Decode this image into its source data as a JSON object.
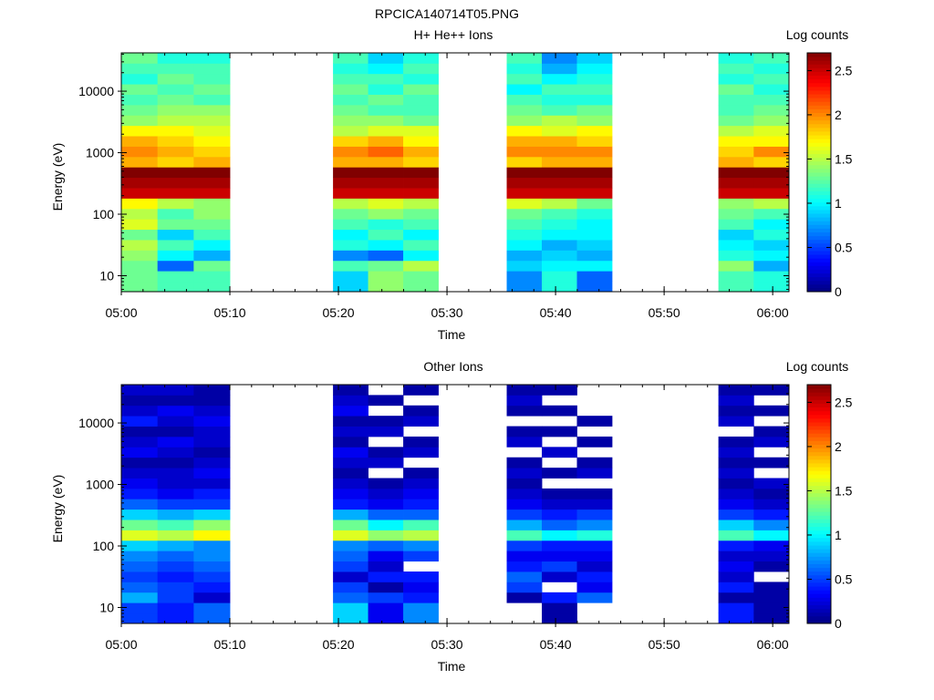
{
  "figure_title": "RPCICA140714T05.PNG",
  "colors": {
    "background": "#ffffff",
    "axis": "#000000",
    "colormap": "jet"
  },
  "chart_data": [
    {
      "type": "heatmap",
      "title": "H+ He++ Ions",
      "xlabel": "Time",
      "ylabel": "Energy (eV)",
      "y_scale": "log",
      "ylim": [
        5.5,
        42000
      ],
      "xlim_minutes": [
        0,
        61.5
      ],
      "x_ticks": [
        {
          "t": 0,
          "label": "05:00"
        },
        {
          "t": 10,
          "label": "05:10"
        },
        {
          "t": 20,
          "label": "05:20"
        },
        {
          "t": 30,
          "label": "05:30"
        },
        {
          "t": 40,
          "label": "05:40"
        },
        {
          "t": 50,
          "label": "05:50"
        },
        {
          "t": 60,
          "label": "06:00"
        }
      ],
      "y_ticks": [
        {
          "v": 10,
          "label": "10"
        },
        {
          "v": 100,
          "label": "100"
        },
        {
          "v": 1000,
          "label": "1000"
        },
        {
          "v": 10000,
          "label": "10000"
        }
      ],
      "colorbar": {
        "label": "Log counts",
        "range": [
          0,
          2.7
        ],
        "ticks": [
          {
            "v": 0,
            "label": "0"
          },
          {
            "v": 0.5,
            "label": "0.5"
          },
          {
            "v": 1,
            "label": "1"
          },
          {
            "v": 1.5,
            "label": "1.5"
          },
          {
            "v": 2,
            "label": "2"
          },
          {
            "v": 2.5,
            "label": "2.5"
          }
        ]
      },
      "time_blocks": [
        {
          "t0": 0,
          "t1": 10,
          "columns": [
            [
              1.3,
              1.3,
              1.3,
              1.4,
              1.5,
              1.3,
              1.6,
              1.5,
              1.7,
              2.5,
              2.6,
              2.7,
              1.9,
              2.0,
              1.9,
              1.7,
              1.4,
              1.3,
              1.2,
              1.3,
              1.1,
              1.2,
              1.3
            ],
            [
              1.2,
              1.2,
              0.6,
              1.0,
              1.2,
              0.9,
              1.3,
              1.2,
              1.5,
              2.5,
              2.6,
              2.7,
              1.8,
              1.9,
              1.8,
              1.7,
              1.5,
              1.4,
              1.3,
              1.2,
              1.3,
              1.2,
              1.1
            ],
            [
              1.2,
              1.2,
              1.3,
              0.8,
              1.0,
              1.2,
              1.3,
              1.4,
              1.4,
              2.5,
              2.6,
              2.7,
              1.9,
              1.8,
              1.7,
              1.6,
              1.5,
              1.4,
              1.2,
              1.3,
              1.2,
              1.2,
              1.1
            ]
          ]
        },
        {
          "t0": 19.5,
          "t1": 29.2,
          "columns": [
            [
              0.9,
              0.9,
              1.2,
              0.7,
              1.1,
              1.0,
              1.2,
              1.3,
              1.5,
              2.5,
              2.6,
              2.7,
              1.9,
              2.0,
              1.8,
              1.5,
              1.4,
              1.3,
              1.2,
              1.3,
              1.2,
              1.1,
              1.2
            ],
            [
              1.4,
              1.4,
              1.3,
              0.6,
              1.0,
              1.2,
              1.1,
              1.4,
              1.6,
              2.5,
              2.6,
              2.7,
              1.9,
              2.1,
              1.9,
              1.6,
              1.4,
              1.2,
              1.3,
              1.1,
              1.2,
              1.0,
              0.9
            ],
            [
              1.3,
              1.3,
              1.5,
              1.0,
              1.2,
              1.0,
              1.2,
              1.3,
              1.5,
              2.5,
              2.6,
              2.7,
              1.8,
              1.9,
              1.7,
              1.6,
              1.3,
              1.2,
              1.2,
              1.3,
              1.1,
              1.2,
              1.1
            ]
          ]
        },
        {
          "t0": 35.5,
          "t1": 45.2,
          "columns": [
            [
              0.7,
              0.7,
              0.9,
              0.8,
              1.0,
              1.1,
              1.2,
              1.3,
              1.6,
              2.5,
              2.6,
              2.7,
              1.8,
              2.0,
              1.9,
              1.7,
              1.4,
              1.3,
              1.2,
              1.0,
              1.2,
              1.1,
              1.2
            ],
            [
              1.1,
              1.1,
              1.0,
              0.9,
              0.8,
              1.0,
              1.1,
              1.2,
              1.5,
              2.5,
              2.6,
              2.7,
              1.9,
              2.0,
              1.9,
              1.6,
              1.5,
              1.2,
              1.1,
              1.2,
              1.0,
              0.8,
              0.7
            ],
            [
              0.6,
              0.6,
              1.0,
              0.8,
              0.9,
              1.0,
              1.0,
              1.1,
              1.3,
              2.5,
              2.6,
              2.7,
              1.9,
              2.0,
              1.8,
              1.7,
              1.4,
              1.3,
              1.1,
              1.2,
              1.1,
              1.0,
              0.9
            ]
          ]
        },
        {
          "t0": 55,
          "t1": 61.5,
          "columns": [
            [
              1.2,
              1.2,
              1.4,
              1.1,
              1.0,
              0.9,
              1.2,
              1.3,
              1.4,
              2.5,
              2.6,
              2.7,
              1.9,
              1.8,
              1.7,
              1.5,
              1.3,
              1.2,
              1.2,
              1.3,
              1.1,
              1.2,
              1.1
            ],
            [
              1.1,
              1.1,
              0.8,
              1.0,
              0.9,
              1.1,
              1.0,
              1.2,
              1.5,
              2.5,
              2.6,
              2.7,
              1.8,
              2.0,
              1.7,
              1.6,
              1.4,
              1.3,
              1.2,
              1.1,
              1.2,
              1.1,
              1.2
            ]
          ]
        }
      ]
    },
    {
      "type": "heatmap",
      "title": "Other Ions",
      "xlabel": "Time",
      "ylabel": "Energy (eV)",
      "y_scale": "log",
      "ylim": [
        5.5,
        42000
      ],
      "xlim_minutes": [
        0,
        61.5
      ],
      "x_ticks": [
        {
          "t": 0,
          "label": "05:00"
        },
        {
          "t": 10,
          "label": "05:10"
        },
        {
          "t": 20,
          "label": "05:20"
        },
        {
          "t": 30,
          "label": "05:30"
        },
        {
          "t": 40,
          "label": "05:40"
        },
        {
          "t": 50,
          "label": "05:50"
        },
        {
          "t": 60,
          "label": "06:00"
        }
      ],
      "y_ticks": [
        {
          "v": 10,
          "label": "10"
        },
        {
          "v": 100,
          "label": "100"
        },
        {
          "v": 1000,
          "label": "1000"
        },
        {
          "v": 10000,
          "label": "10000"
        }
      ],
      "colorbar": {
        "label": "Log counts",
        "range": [
          0,
          2.7
        ],
        "ticks": [
          {
            "v": 0,
            "label": "0"
          },
          {
            "v": 0.5,
            "label": "0.5"
          },
          {
            "v": 1,
            "label": "1"
          },
          {
            "v": 1.5,
            "label": "1.5"
          },
          {
            "v": 2,
            "label": "2"
          },
          {
            "v": 2.5,
            "label": "2.5"
          }
        ]
      },
      "time_blocks": [
        {
          "t0": 0,
          "t1": 10,
          "columns": [
            [
              0.5,
              0.5,
              0.8,
              0.6,
              0.5,
              0.6,
              0.7,
              0.9,
              1.6,
              1.3,
              0.9,
              0.6,
              0.4,
              0.3,
              0.2,
              0.1,
              0.3,
              0.2,
              0.1,
              0.4,
              0.2,
              0.1,
              0.2
            ],
            [
              0.4,
              0.4,
              0.5,
              0.5,
              0.4,
              0.5,
              0.6,
              0.8,
              1.5,
              1.2,
              0.8,
              0.5,
              0.3,
              0.2,
              0.2,
              0.1,
              0.2,
              0.3,
              0.1,
              0.2,
              0.3,
              0.1,
              0.2
            ],
            [
              0.6,
              0.6,
              0.2,
              0.4,
              0.5,
              0.6,
              0.7,
              0.7,
              1.7,
              1.4,
              0.9,
              0.5,
              0.4,
              0.2,
              0.3,
              0.2,
              0.1,
              0.2,
              0.2,
              0.3,
              0.2,
              0.1,
              0.1
            ]
          ]
        },
        {
          "t0": 19.5,
          "t1": 29.2,
          "columns": [
            [
              0.9,
              0.9,
              0.6,
              0.5,
              0.2,
              0.5,
              0.6,
              0.7,
              1.6,
              1.3,
              0.8,
              0.4,
              0.3,
              0.2,
              0.1,
              0.2,
              0.3,
              0.1,
              0.2,
              0.1,
              0.3,
              0.2,
              0.1
            ],
            [
              0.3,
              0.3,
              0.5,
              0.1,
              0.4,
              0.2,
              0.3,
              0.6,
              1.4,
              1.0,
              0.6,
              0.3,
              0.2,
              0.1,
              null,
              0.2,
              0.1,
              null,
              0.2,
              0.1,
              null,
              0.1,
              null
            ],
            [
              0.7,
              0.7,
              0.4,
              0.3,
              0.4,
              null,
              0.5,
              0.7,
              1.5,
              1.2,
              0.6,
              0.4,
              0.3,
              0.2,
              0.1,
              null,
              0.2,
              0.1,
              null,
              0.2,
              0.1,
              null,
              0.1
            ]
          ]
        },
        {
          "t0": 35.5,
          "t1": 45.2,
          "columns": [
            [
              null,
              null,
              0.1,
              0.5,
              0.6,
              0.4,
              0.3,
              0.5,
              1.2,
              0.8,
              0.5,
              0.3,
              0.2,
              0.1,
              0.2,
              0.1,
              null,
              0.2,
              0.1,
              null,
              0.1,
              0.2,
              0.1
            ],
            [
              0.1,
              0.1,
              0.4,
              null,
              0.2,
              0.5,
              0.3,
              0.4,
              1.0,
              0.6,
              0.4,
              0.2,
              0.1,
              null,
              0.1,
              null,
              0.2,
              null,
              0.1,
              null,
              0.1,
              null,
              0.1
            ],
            [
              null,
              null,
              0.6,
              0.3,
              0.4,
              0.2,
              0.3,
              0.4,
              1.1,
              0.7,
              0.5,
              0.2,
              0.1,
              null,
              0.2,
              0.1,
              null,
              0.1,
              null,
              0.1,
              null,
              null,
              null
            ]
          ]
        },
        {
          "t0": 55,
          "t1": 61.5,
          "columns": [
            [
              0.4,
              0.4,
              0.1,
              0.4,
              0.2,
              0.3,
              0.2,
              0.4,
              1.2,
              0.9,
              0.5,
              0.3,
              0.2,
              0.1,
              0.2,
              0.1,
              0.2,
              0.1,
              null,
              0.2,
              0.1,
              0.2,
              0.1
            ],
            [
              0.1,
              0.1,
              0.1,
              0.1,
              null,
              0.1,
              0.2,
              0.3,
              1.0,
              0.7,
              0.4,
              0.2,
              0.1,
              0.2,
              null,
              0.1,
              null,
              0.2,
              0.1,
              null,
              0.1,
              null,
              0.1
            ]
          ]
        }
      ]
    }
  ]
}
